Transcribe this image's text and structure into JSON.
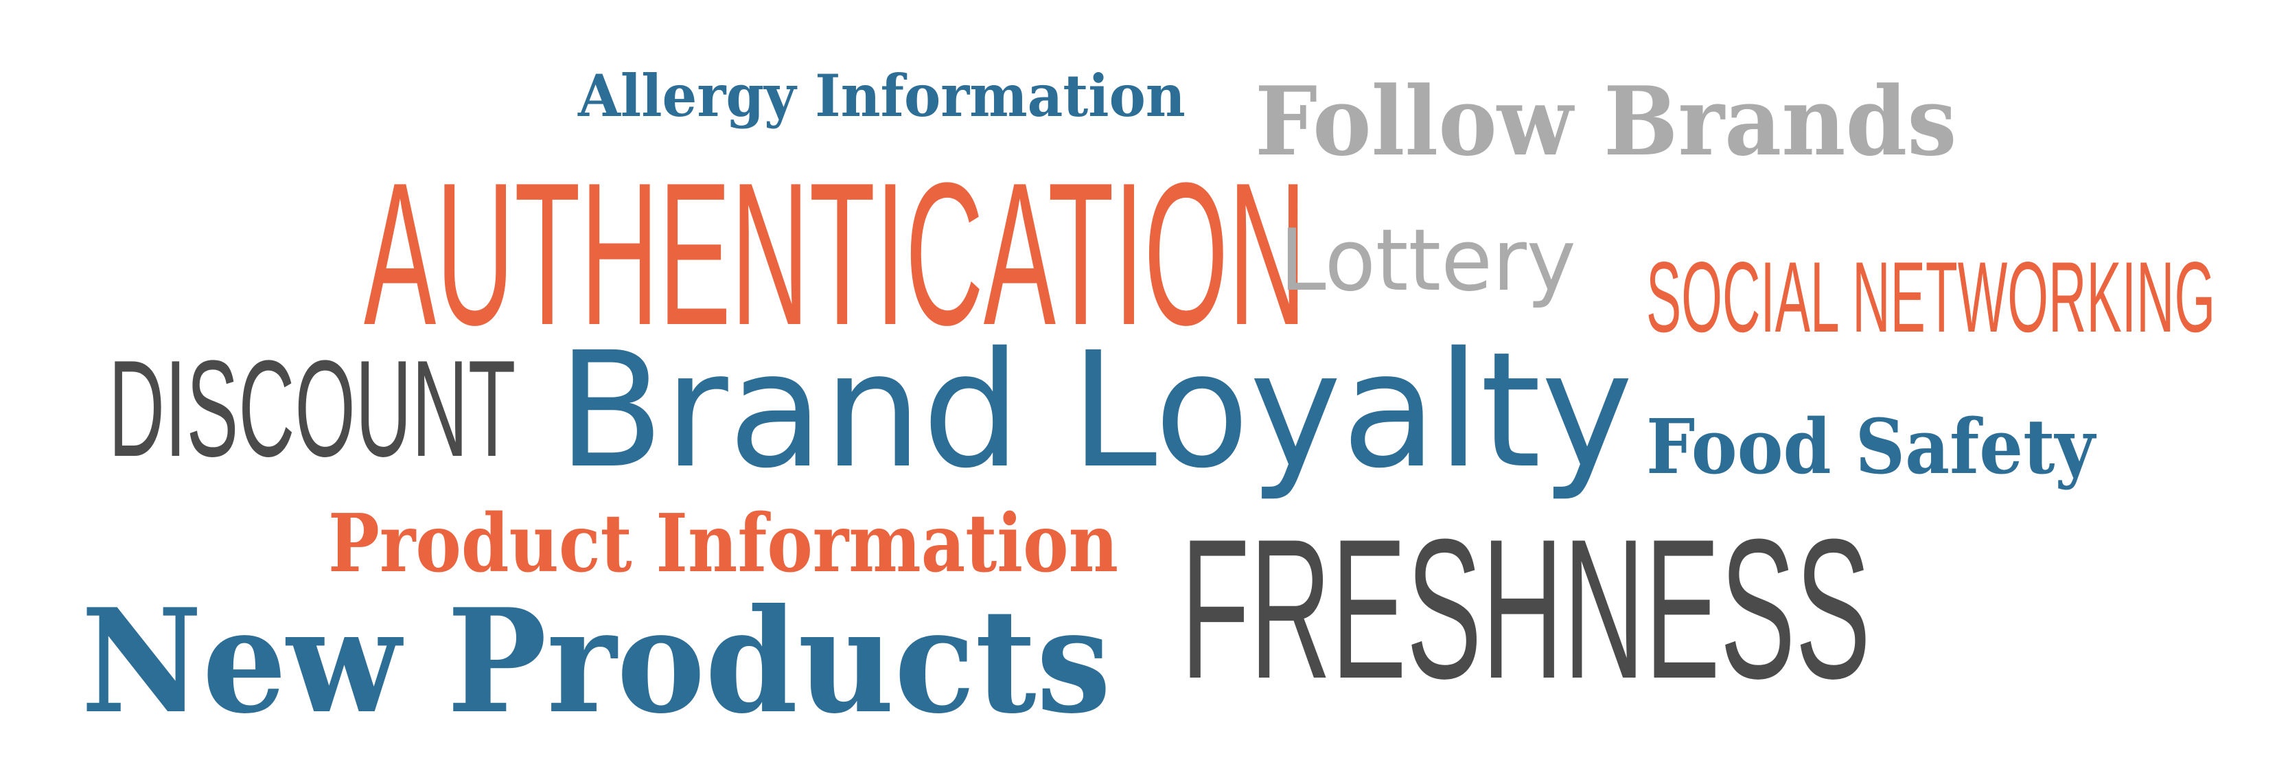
{
  "colors": {
    "blue": "#2d6e96",
    "orange": "#e9643f",
    "gray": "#ababab",
    "dark": "#4b4b4b",
    "background": "#ffffff"
  },
  "words": {
    "allergy_information": "Allergy Information",
    "follow_brands": "Follow Brands",
    "authentication": "AUTHENTICATION",
    "lottery": "Lottery",
    "social_networking": "SOCIAL NETWORKING",
    "discount": "DISCOUNT",
    "brand_loyalty": "Brand Loyalty",
    "food_safety": "Food Safety",
    "product_information": "Product Information",
    "freshness": "FRESHNESS",
    "new_products": "New Products"
  }
}
